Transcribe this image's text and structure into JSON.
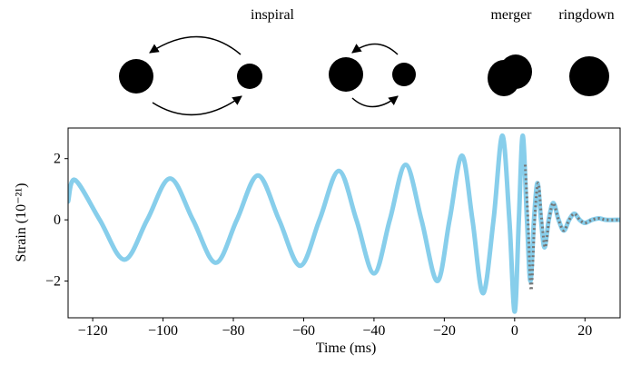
{
  "chart_data": {
    "type": "line",
    "annotations": [
      "inspiral",
      "merger",
      "ringdown"
    ],
    "xlabel": "Time (ms)",
    "ylabel": "Strain (10⁻²¹)",
    "xlim": [
      -127,
      30
    ],
    "ylim": [
      -3.2,
      3.0
    ],
    "xticks": [
      {
        "value": -120,
        "label": "−120"
      },
      {
        "value": -100,
        "label": "−100"
      },
      {
        "value": -80,
        "label": "−80"
      },
      {
        "value": -60,
        "label": "−60"
      },
      {
        "value": -40,
        "label": "−40"
      },
      {
        "value": -20,
        "label": "−20"
      },
      0,
      20
    ],
    "yticks": [
      {
        "value": -2,
        "label": "−2"
      },
      0,
      2
    ],
    "series": [
      {
        "color": "#87ceeb",
        "style": "solid",
        "x": [
          -127,
          -125,
          -118,
          -111,
          -104.5,
          -98,
          -91.5,
          -85,
          -79,
          -73,
          -67,
          -61,
          -55.5,
          -50,
          -45,
          -40,
          -35.5,
          -31,
          -26.5,
          -22,
          -18.5,
          -15,
          -12,
          -9,
          -6,
          -3.5,
          -1.5,
          0,
          1.2,
          2.3,
          3.5,
          4.5,
          5.5,
          6.5,
          7.5,
          8.5,
          9.7,
          11,
          12.5,
          14,
          15.5,
          17,
          18.5,
          20,
          22,
          24,
          26,
          30
        ],
        "values": [
          0.6,
          1.3,
          0,
          -1.3,
          0,
          1.35,
          0,
          -1.4,
          0,
          1.45,
          0,
          -1.5,
          0,
          1.6,
          0,
          -1.75,
          0,
          1.8,
          0,
          -2.0,
          0,
          2.1,
          0,
          -2.4,
          0,
          2.75,
          0,
          -3.0,
          0,
          2.75,
          0,
          -2.0,
          0,
          1.2,
          0,
          -0.9,
          0,
          0.55,
          0,
          -0.35,
          0,
          0.2,
          0,
          -0.1,
          0,
          0.05,
          0,
          0
        ]
      },
      {
        "color": "#777777",
        "style": "dotted",
        "x": [
          3,
          3.8,
          4.7,
          5.7,
          6.7,
          7.7,
          8.7,
          9.8,
          11,
          12.5,
          14,
          15.5,
          17,
          18.5,
          20,
          22,
          24,
          26,
          30
        ],
        "values": [
          1.8,
          0,
          -2.3,
          0,
          1.2,
          0,
          -0.9,
          0,
          0.55,
          0,
          -0.35,
          0,
          0.2,
          0,
          -0.1,
          0,
          0.05,
          0,
          0
        ]
      }
    ]
  }
}
